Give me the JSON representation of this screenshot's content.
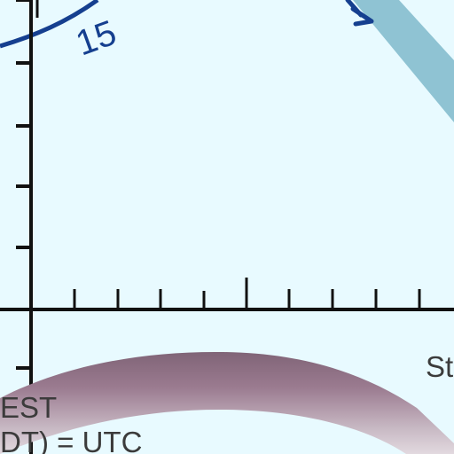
{
  "diagram": {
    "curve_label": "15",
    "note_line_1": "EST",
    "note_line_2": "DT) = UTC",
    "partial_label": "St"
  },
  "colors": {
    "background": "#e8faff",
    "axis": "#111111",
    "blue_curve": "#153f8f",
    "light_band": "#8fc3d3",
    "purple_band": "#8f6d82",
    "text": "#3b3b3b"
  }
}
